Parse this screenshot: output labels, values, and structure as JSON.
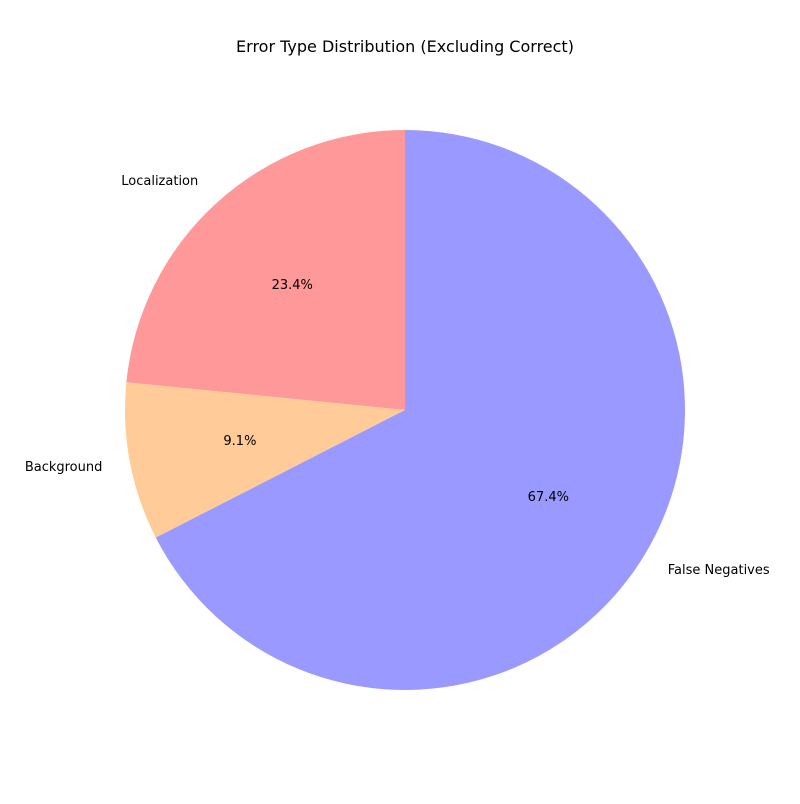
{
  "chart_data": {
    "type": "pie",
    "title": "Error Type Distribution (Excluding Correct)",
    "slices": [
      {
        "label": "Localization",
        "value": 23.4,
        "pct_label": "23.4%",
        "color": "#ff9999"
      },
      {
        "label": "Background",
        "value": 9.1,
        "pct_label": "9.1%",
        "color": "#ffcc99"
      },
      {
        "label": "False Negatives",
        "value": 67.4,
        "pct_label": "67.4%",
        "color": "#9999ff"
      }
    ],
    "start_angle_deg": 90,
    "direction": "counterclockwise"
  }
}
